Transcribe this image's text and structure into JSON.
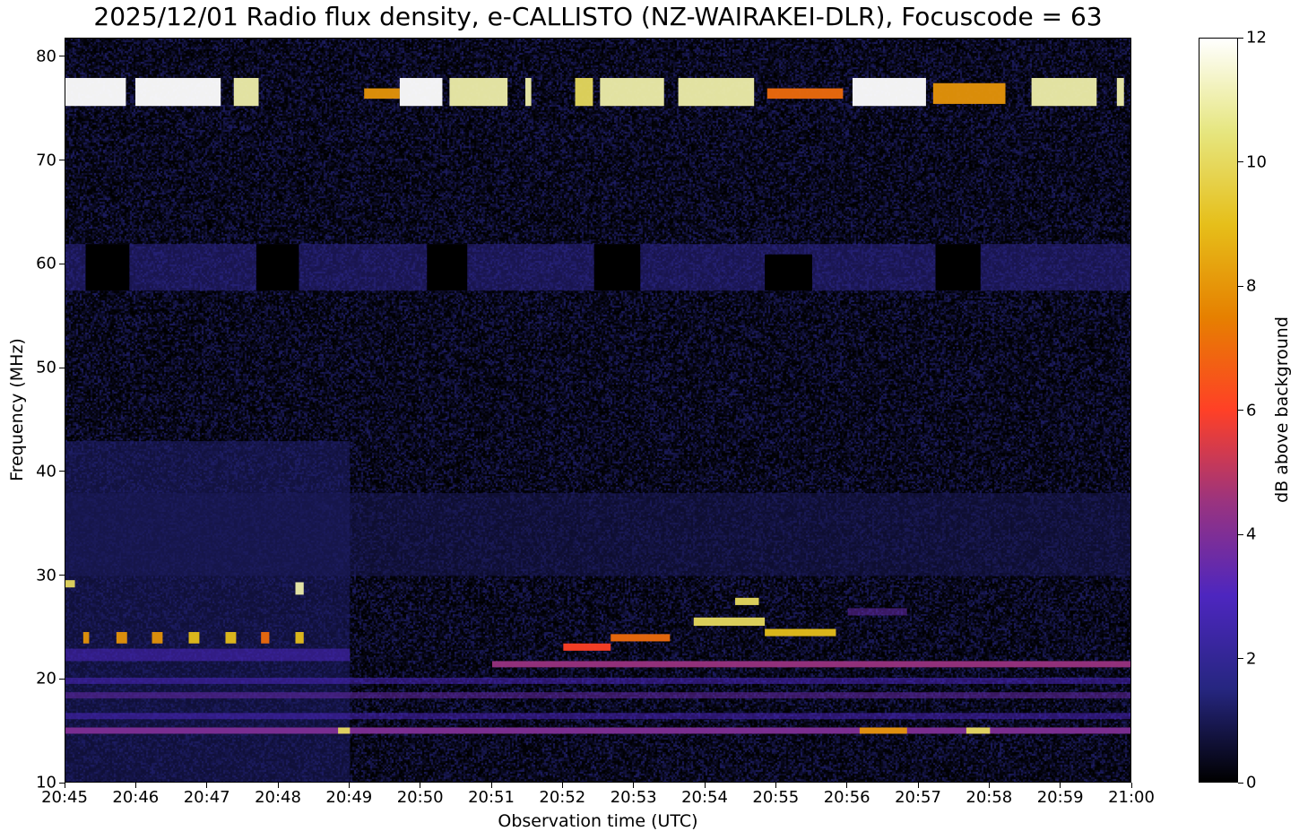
{
  "chart_data": {
    "type": "heatmap",
    "title": "2025/12/01 Radio flux density, e-CALLISTO (NZ-WAIRAKEI-DLR), Focuscode = 63",
    "xlabel": "Observation time (UTC)",
    "ylabel": "Frequency (MHz)",
    "xlim": [
      "20:45:00",
      "21:00:00"
    ],
    "ylim": [
      10,
      81.8
    ],
    "x_ticks": [
      "20:45",
      "20:46",
      "20:47",
      "20:48",
      "20:49",
      "20:50",
      "20:51",
      "20:52",
      "20:53",
      "20:54",
      "20:55",
      "20:56",
      "20:57",
      "20:58",
      "20:59",
      "21:00"
    ],
    "y_ticks": [
      10,
      20,
      30,
      40,
      50,
      60,
      70,
      80
    ],
    "colorbar": {
      "label": "dB above background",
      "range": [
        0,
        12
      ],
      "ticks": [
        0,
        2,
        4,
        6,
        8,
        10,
        12
      ],
      "colormap": "CMRmap"
    },
    "background_db": 0.4,
    "features": [
      {
        "t0": "20:45:00",
        "t1": "20:49:00",
        "f0": 30,
        "f1": 43,
        "db": 1.3
      },
      {
        "t0": "20:45:00",
        "t1": "21:00:00",
        "f0": 30,
        "f1": 38,
        "db": 1.0
      },
      {
        "t0": "20:45:00",
        "t1": "20:49:00",
        "f0": 10,
        "f1": 30,
        "db": 1.2
      },
      {
        "t0": "20:45:00",
        "t1": "21:00:00",
        "f0": 57.5,
        "f1": 62,
        "db": 1.8
      },
      {
        "t0": "20:45:17",
        "t1": "20:45:54",
        "f0": 57.5,
        "f1": 62,
        "db": 0
      },
      {
        "t0": "20:47:41",
        "t1": "20:48:17",
        "f0": 57.5,
        "f1": 62,
        "db": 0
      },
      {
        "t0": "20:50:05",
        "t1": "20:50:39",
        "f0": 57.5,
        "f1": 62,
        "db": 0
      },
      {
        "t0": "20:52:26",
        "t1": "20:53:05",
        "f0": 57.5,
        "f1": 62,
        "db": 0
      },
      {
        "t0": "20:54:50",
        "t1": "20:55:30",
        "f0": 57.5,
        "f1": 61,
        "db": 0
      },
      {
        "t0": "20:57:14",
        "t1": "20:57:52",
        "f0": 57.5,
        "f1": 62,
        "db": 0
      },
      {
        "t0": "20:45:00",
        "t1": "20:45:51",
        "f0": 75.3,
        "f1": 78,
        "db": 12
      },
      {
        "t0": "20:45:59",
        "t1": "20:47:11",
        "f0": 75.3,
        "f1": 78,
        "db": 12
      },
      {
        "t0": "20:47:22",
        "t1": "20:47:43",
        "f0": 75.3,
        "f1": 78,
        "db": 11
      },
      {
        "t0": "20:49:12",
        "t1": "20:49:42",
        "f0": 76,
        "f1": 77,
        "db": 8
      },
      {
        "t0": "20:49:42",
        "t1": "20:50:18",
        "f0": 75.3,
        "f1": 78,
        "db": 12
      },
      {
        "t0": "20:50:24",
        "t1": "20:51:13",
        "f0": 75.3,
        "f1": 78,
        "db": 11
      },
      {
        "t0": "20:51:28",
        "t1": "20:51:33",
        "f0": 75.3,
        "f1": 78,
        "db": 11
      },
      {
        "t0": "20:52:10",
        "t1": "20:52:25",
        "f0": 75.3,
        "f1": 78,
        "db": 10
      },
      {
        "t0": "20:52:31",
        "t1": "20:53:25",
        "f0": 75.3,
        "f1": 78,
        "db": 11
      },
      {
        "t0": "20:53:37",
        "t1": "20:54:41",
        "f0": 75.3,
        "f1": 78,
        "db": 11
      },
      {
        "t0": "20:54:52",
        "t1": "20:55:56",
        "f0": 76,
        "f1": 77,
        "db": 7
      },
      {
        "t0": "20:56:04",
        "t1": "20:57:06",
        "f0": 75.3,
        "f1": 78,
        "db": 12
      },
      {
        "t0": "20:57:12",
        "t1": "20:58:13",
        "f0": 75.5,
        "f1": 77.5,
        "db": 8
      },
      {
        "t0": "20:58:35",
        "t1": "20:59:30",
        "f0": 75.3,
        "f1": 78,
        "db": 11
      },
      {
        "t0": "20:59:47",
        "t1": "20:59:53",
        "f0": 75.3,
        "f1": 78,
        "db": 11
      },
      {
        "t0": "20:45:00",
        "t1": "20:45:08",
        "f0": 28.9,
        "f1": 29.6,
        "db": 10
      },
      {
        "t0": "20:48:14",
        "t1": "20:48:21",
        "f0": 28.2,
        "f1": 29.4,
        "db": 11
      },
      {
        "t0": "20:45:15",
        "t1": "20:45:20",
        "f0": 23.5,
        "f1": 24.6,
        "db": 8
      },
      {
        "t0": "20:45:43",
        "t1": "20:45:52",
        "f0": 23.5,
        "f1": 24.6,
        "db": 8
      },
      {
        "t0": "20:46:13",
        "t1": "20:46:22",
        "f0": 23.5,
        "f1": 24.6,
        "db": 8
      },
      {
        "t0": "20:46:44",
        "t1": "20:46:53",
        "f0": 23.5,
        "f1": 24.6,
        "db": 9
      },
      {
        "t0": "20:47:15",
        "t1": "20:47:24",
        "f0": 23.5,
        "f1": 24.6,
        "db": 9
      },
      {
        "t0": "20:47:45",
        "t1": "20:47:52",
        "f0": 23.5,
        "f1": 24.6,
        "db": 7
      },
      {
        "t0": "20:48:14",
        "t1": "20:48:21",
        "f0": 23.5,
        "f1": 24.6,
        "db": 9
      },
      {
        "t0": "20:45:00",
        "t1": "20:49:00",
        "f0": 21.8,
        "f1": 23,
        "db": 3
      },
      {
        "t0": "20:52:00",
        "t1": "20:52:40",
        "f0": 22.8,
        "f1": 23.5,
        "db": 6
      },
      {
        "t0": "20:52:40",
        "t1": "20:53:30",
        "f0": 23.7,
        "f1": 24.4,
        "db": 7
      },
      {
        "t0": "20:53:50",
        "t1": "20:54:50",
        "f0": 25.2,
        "f1": 26,
        "db": 10
      },
      {
        "t0": "20:54:25",
        "t1": "20:54:45",
        "f0": 27.2,
        "f1": 27.9,
        "db": 10
      },
      {
        "t0": "20:54:50",
        "t1": "20:55:50",
        "f0": 24.2,
        "f1": 24.9,
        "db": 9
      },
      {
        "t0": "20:56:00",
        "t1": "20:56:50",
        "f0": 26.2,
        "f1": 26.9,
        "db": 3.5
      },
      {
        "t0": "20:51:00",
        "t1": "21:00:00",
        "f0": 21.2,
        "f1": 21.8,
        "db": 4.5
      },
      {
        "t0": "20:45:00",
        "t1": "21:00:00",
        "f0": 19.6,
        "f1": 20.2,
        "db": 3
      },
      {
        "t0": "20:45:00",
        "t1": "21:00:00",
        "f0": 18.2,
        "f1": 18.8,
        "db": 3.5
      },
      {
        "t0": "20:45:00",
        "t1": "21:00:00",
        "f0": 16.2,
        "f1": 16.8,
        "db": 3
      },
      {
        "t0": "20:45:00",
        "t1": "21:00:00",
        "f0": 14.8,
        "f1": 15.4,
        "db": 4
      },
      {
        "t0": "20:56:10",
        "t1": "20:56:50",
        "f0": 14.8,
        "f1": 15.4,
        "db": 8
      },
      {
        "t0": "20:57:40",
        "t1": "20:58:00",
        "f0": 14.8,
        "f1": 15.4,
        "db": 10
      },
      {
        "t0": "20:48:50",
        "t1": "20:49:00",
        "f0": 14.8,
        "f1": 15.4,
        "db": 10
      }
    ]
  }
}
